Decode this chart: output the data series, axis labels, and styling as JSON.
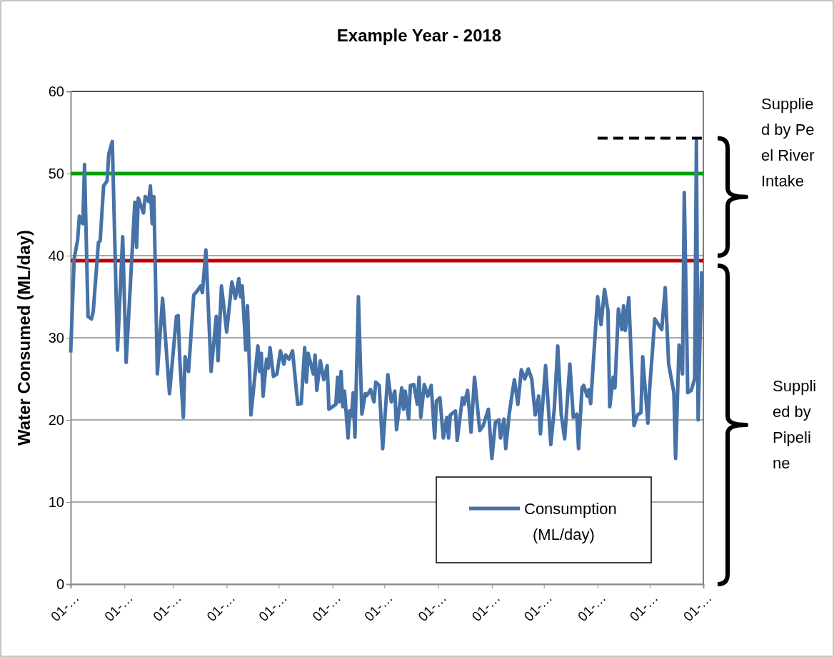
{
  "chart_data": {
    "type": "line",
    "title": "Example Year - 2018",
    "ylabel": "Water Consumed (ML/day)",
    "xlim": [
      "2018-01-01",
      "2019-01-01"
    ],
    "xticks": [
      {
        "value": "2018-01-01",
        "label": "01-…"
      },
      {
        "value": "2018-02-01",
        "label": "01-…"
      },
      {
        "value": "2018-03-01",
        "label": "01-…"
      },
      {
        "value": "2018-04-01",
        "label": "01-…"
      },
      {
        "value": "2018-05-01",
        "label": "01-…"
      },
      {
        "value": "2018-06-01",
        "label": "01-…"
      },
      {
        "value": "2018-07-01",
        "label": "01-…"
      },
      {
        "value": "2018-08-01",
        "label": "01-…"
      },
      {
        "value": "2018-09-01",
        "label": "01-…"
      },
      {
        "value": "2018-10-01",
        "label": "01-…"
      },
      {
        "value": "2018-11-01",
        "label": "01-…"
      },
      {
        "value": "2018-12-01",
        "label": "01-…"
      },
      {
        "value": "2019-01-01",
        "label": "01-…"
      }
    ],
    "ylim": [
      0,
      60
    ],
    "yticks": [
      0,
      10,
      20,
      30,
      40,
      50,
      60
    ],
    "grid": "y",
    "legend": "bottom right",
    "series": [
      {
        "name": "Consumption (ML/day)",
        "color": "#4672a8",
        "x": [
          "2018-01-01",
          "2018-01-03",
          "2018-01-05",
          "2018-01-06",
          "2018-01-08",
          "2018-01-09",
          "2018-01-11",
          "2018-01-13",
          "2018-01-14",
          "2018-01-17",
          "2018-01-18",
          "2018-01-20",
          "2018-01-22",
          "2018-01-23",
          "2018-01-25",
          "2018-01-28",
          "2018-01-31",
          "2018-02-02",
          "2018-02-07",
          "2018-02-08",
          "2018-02-09",
          "2018-02-12",
          "2018-02-13",
          "2018-02-15",
          "2018-02-16",
          "2018-02-17",
          "2018-02-18",
          "2018-02-20",
          "2018-02-23",
          "2018-02-27",
          "2018-03-03",
          "2018-03-04",
          "2018-03-05",
          "2018-03-07",
          "2018-03-08",
          "2018-03-10",
          "2018-03-13",
          "2018-03-15",
          "2018-03-17",
          "2018-03-18",
          "2018-03-20",
          "2018-03-23",
          "2018-03-26",
          "2018-03-27",
          "2018-03-29",
          "2018-04-01",
          "2018-04-04",
          "2018-04-06",
          "2018-04-08",
          "2018-04-09",
          "2018-04-10",
          "2018-04-12",
          "2018-04-13",
          "2018-04-15",
          "2018-04-19",
          "2018-04-20",
          "2018-04-21",
          "2018-04-22",
          "2018-04-24",
          "2018-04-25",
          "2018-04-26",
          "2018-04-28",
          "2018-04-30",
          "2018-05-02",
          "2018-05-04",
          "2018-05-05",
          "2018-05-07",
          "2018-05-09",
          "2018-05-12",
          "2018-05-14",
          "2018-05-16",
          "2018-05-17",
          "2018-05-18",
          "2018-05-21",
          "2018-05-22",
          "2018-05-23",
          "2018-05-25",
          "2018-05-27",
          "2018-05-29",
          "2018-05-30",
          "2018-06-03",
          "2018-06-04",
          "2018-06-05",
          "2018-06-06",
          "2018-06-07",
          "2018-06-08",
          "2018-06-10",
          "2018-06-11",
          "2018-06-12",
          "2018-06-13",
          "2018-06-14",
          "2018-06-16",
          "2018-06-18",
          "2018-06-20",
          "2018-06-21",
          "2018-06-23",
          "2018-06-25",
          "2018-06-26",
          "2018-06-28",
          "2018-06-30",
          "2018-07-03",
          "2018-07-05",
          "2018-07-07",
          "2018-07-08",
          "2018-07-11",
          "2018-07-12",
          "2018-07-13",
          "2018-07-15",
          "2018-07-16",
          "2018-07-18",
          "2018-07-20",
          "2018-07-21",
          "2018-07-22",
          "2018-07-24",
          "2018-07-26",
          "2018-07-28",
          "2018-07-30",
          "2018-07-31",
          "2018-08-02",
          "2018-08-04",
          "2018-08-06",
          "2018-08-07",
          "2018-08-08",
          "2018-08-11",
          "2018-08-12",
          "2018-08-15",
          "2018-08-16",
          "2018-08-18",
          "2018-08-20",
          "2018-08-22",
          "2018-08-25",
          "2018-08-27",
          "2018-08-30",
          "2018-09-01",
          "2018-09-03",
          "2018-09-05",
          "2018-09-06",
          "2018-09-08",
          "2018-09-09",
          "2018-09-11",
          "2018-09-13",
          "2018-09-14",
          "2018-09-16",
          "2018-09-18",
          "2018-09-20",
          "2018-09-22",
          "2018-09-24",
          "2018-09-26",
          "2018-09-28",
          "2018-09-29",
          "2018-10-02",
          "2018-10-05",
          "2018-10-07",
          "2018-10-09",
          "2018-10-11",
          "2018-10-13",
          "2018-10-16",
          "2018-10-18",
          "2018-10-20",
          "2018-10-21",
          "2018-10-23",
          "2018-10-24",
          "2018-10-26",
          "2018-10-27",
          "2018-10-28",
          "2018-11-01",
          "2018-11-03",
          "2018-11-05",
          "2018-11-07",
          "2018-11-08",
          "2018-11-10",
          "2018-11-11",
          "2018-11-13",
          "2018-11-15",
          "2018-11-16",
          "2018-11-17",
          "2018-11-19",
          "2018-11-22",
          "2018-11-24",
          "2018-11-26",
          "2018-11-27",
          "2018-11-30",
          "2018-12-01",
          "2018-12-04",
          "2018-12-08",
          "2018-12-10",
          "2018-12-12",
          "2018-12-15",
          "2018-12-16",
          "2018-12-18",
          "2018-12-20",
          "2018-12-21",
          "2018-12-23",
          "2018-12-25",
          "2018-12-27",
          "2018-12-28",
          "2018-12-29",
          "2018-12-31"
        ],
        "values": [
          28.2,
          39.6,
          41.9,
          44.8,
          43.9,
          51.1,
          32.6,
          32.3,
          33.2,
          41.6,
          41.8,
          48.5,
          49.1,
          52.4,
          53.9,
          28.5,
          42.3,
          27.0,
          46.5,
          41.0,
          47.0,
          45.2,
          47.2,
          46.6,
          48.5,
          43.9,
          47.2,
          25.6,
          34.8,
          23.2,
          32.6,
          32.7,
          27.1,
          20.3,
          27.7,
          25.9,
          35.2,
          35.7,
          36.3,
          35.5,
          40.7,
          25.9,
          32.6,
          27.2,
          36.3,
          30.7,
          36.8,
          34.8,
          37.2,
          35.0,
          36.3,
          28.5,
          33.9,
          20.6,
          29.0,
          25.9,
          28.1,
          22.9,
          27.4,
          26.3,
          28.8,
          25.3,
          25.6,
          28.4,
          26.8,
          27.9,
          27.4,
          28.4,
          21.9,
          22.0,
          28.8,
          24.6,
          28.1,
          25.6,
          27.9,
          23.6,
          27.2,
          24.9,
          26.6,
          21.3,
          21.9,
          25.2,
          22.2,
          25.9,
          21.6,
          23.5,
          17.8,
          21.1,
          20.4,
          23.3,
          17.9,
          35.0,
          20.7,
          23.2,
          23.0,
          23.7,
          22.2,
          24.6,
          24.2,
          16.5,
          25.5,
          22.2,
          23.5,
          18.8,
          23.9,
          21.3,
          23.5,
          20.1,
          24.2,
          24.3,
          21.9,
          25.2,
          20.3,
          24.3,
          22.9,
          24.2,
          17.8,
          22.3,
          22.7,
          17.8,
          20.3,
          17.8,
          20.6,
          21.1,
          17.5,
          22.7,
          21.9,
          23.6,
          18.5,
          25.2,
          18.7,
          19.3,
          21.3,
          15.3,
          19.7,
          20.0,
          17.8,
          20.1,
          16.5,
          20.7,
          23.6,
          24.9,
          21.9,
          26.1,
          25.0,
          26.2,
          25.0,
          20.6,
          22.9,
          18.3,
          26.6,
          17.0,
          21.3,
          29.0,
          20.7,
          17.7,
          26.8,
          20.3,
          20.7,
          16.5,
          23.9,
          24.2,
          22.9,
          23.7,
          22.0,
          35.0,
          31.6,
          35.9,
          33.2,
          21.6,
          25.2,
          23.9,
          33.5,
          31.0,
          33.9,
          30.9,
          34.9,
          19.3,
          20.6,
          20.9,
          27.7,
          19.6,
          23.7,
          32.3,
          31.0,
          36.1,
          26.8,
          23.3,
          15.3,
          29.1,
          25.6,
          47.7,
          23.3,
          23.6,
          25.0,
          54.0,
          20.0,
          38.1
        ]
      },
      {
        "type": "line",
        "color": "#000000",
        "line_style": "dashed",
        "x": [
          "2018-11-01",
          "2019-01-01"
        ],
        "values": [
          54.3,
          54.3
        ]
      }
    ],
    "ref_lines": [
      {
        "axis": "y",
        "value": 50,
        "color": "#00a000"
      },
      {
        "axis": "y",
        "value": 39.4,
        "color": "#c00000"
      }
    ],
    "annotations": [
      "Supplied by Peel River Intake",
      "Supplied by Pipeline"
    ]
  }
}
